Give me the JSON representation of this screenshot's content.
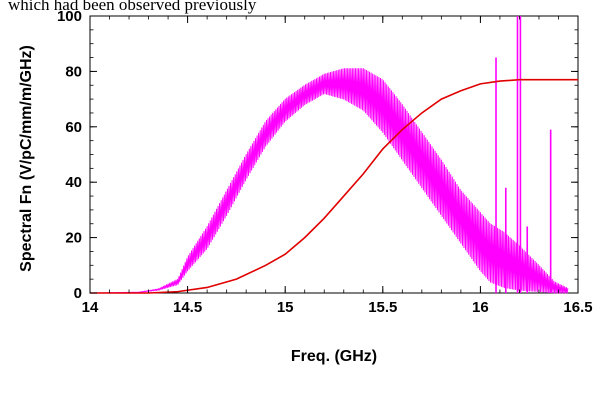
{
  "caption": "which had been observed previously",
  "colors": {
    "spectral": "#ff00ff",
    "integral": "#e00000",
    "axis": "#000000"
  },
  "chart_data": {
    "type": "line",
    "title": "",
    "xlabel": "Freq. (GHz)",
    "ylabel": "Spectral Fn (V/pC/mm/m/GHz)",
    "xlim": [
      14,
      16.5
    ],
    "ylim": [
      0,
      100
    ],
    "xticks": [
      {
        "value": 14,
        "label": "14"
      },
      {
        "value": 14.5,
        "label": "14.5"
      },
      {
        "value": 15,
        "label": "15"
      },
      {
        "value": 15.5,
        "label": "15.5"
      },
      {
        "value": 16,
        "label": "16"
      },
      {
        "value": 16.5,
        "label": "16.5"
      }
    ],
    "yticks": [
      {
        "value": 0,
        "label": "0"
      },
      {
        "value": 20,
        "label": "20"
      },
      {
        "value": 40,
        "label": "40"
      },
      {
        "value": 60,
        "label": "60"
      },
      {
        "value": 80,
        "label": "80"
      },
      {
        "value": 100,
        "label": "100"
      }
    ],
    "grid": false,
    "series": [
      {
        "color": "#ff00ff",
        "style": "oscillating",
        "upper": [
          [
            14.0,
            0
          ],
          [
            14.25,
            0.3
          ],
          [
            14.35,
            1.5
          ],
          [
            14.45,
            5
          ],
          [
            14.5,
            13
          ],
          [
            14.6,
            24
          ],
          [
            14.7,
            37
          ],
          [
            14.8,
            50
          ],
          [
            14.9,
            62
          ],
          [
            15.0,
            70
          ],
          [
            15.1,
            75
          ],
          [
            15.2,
            79
          ],
          [
            15.3,
            81
          ],
          [
            15.4,
            81
          ],
          [
            15.5,
            77
          ],
          [
            15.6,
            68
          ],
          [
            15.7,
            58
          ],
          [
            15.8,
            48
          ],
          [
            15.9,
            37
          ],
          [
            16.0,
            29
          ],
          [
            16.05,
            25
          ],
          [
            16.12,
            22
          ],
          [
            16.2,
            17
          ],
          [
            16.3,
            10
          ],
          [
            16.38,
            4
          ],
          [
            16.5,
            0
          ]
        ],
        "lower": [
          [
            14.0,
            0
          ],
          [
            14.25,
            0.2
          ],
          [
            14.35,
            1
          ],
          [
            14.45,
            3
          ],
          [
            14.5,
            8
          ],
          [
            14.6,
            16
          ],
          [
            14.7,
            28
          ],
          [
            14.8,
            41
          ],
          [
            14.9,
            53
          ],
          [
            15.0,
            62
          ],
          [
            15.1,
            68
          ],
          [
            15.2,
            72
          ],
          [
            15.3,
            70
          ],
          [
            15.4,
            66
          ],
          [
            15.5,
            58
          ],
          [
            15.6,
            48
          ],
          [
            15.7,
            38
          ],
          [
            15.8,
            28
          ],
          [
            15.9,
            18
          ],
          [
            16.0,
            8
          ],
          [
            16.05,
            4
          ],
          [
            16.12,
            2
          ],
          [
            16.2,
            1
          ],
          [
            16.3,
            0.5
          ],
          [
            16.38,
            0
          ],
          [
            16.5,
            0
          ]
        ],
        "spikes": [
          [
            16.08,
            85
          ],
          [
            16.13,
            38
          ],
          [
            16.19,
            100
          ],
          [
            16.205,
            100
          ],
          [
            16.24,
            24
          ],
          [
            16.36,
            59
          ]
        ]
      },
      {
        "color": "#e00000",
        "style": "solid",
        "points": [
          [
            14.0,
            0
          ],
          [
            14.3,
            0
          ],
          [
            14.45,
            0.5
          ],
          [
            14.6,
            2
          ],
          [
            14.75,
            5
          ],
          [
            14.9,
            10
          ],
          [
            15.0,
            14
          ],
          [
            15.1,
            20
          ],
          [
            15.2,
            27
          ],
          [
            15.3,
            35
          ],
          [
            15.4,
            43
          ],
          [
            15.5,
            52
          ],
          [
            15.6,
            59
          ],
          [
            15.7,
            65
          ],
          [
            15.8,
            70
          ],
          [
            15.9,
            73
          ],
          [
            16.0,
            75.5
          ],
          [
            16.1,
            76.5
          ],
          [
            16.2,
            77
          ],
          [
            16.5,
            77
          ]
        ]
      }
    ]
  }
}
